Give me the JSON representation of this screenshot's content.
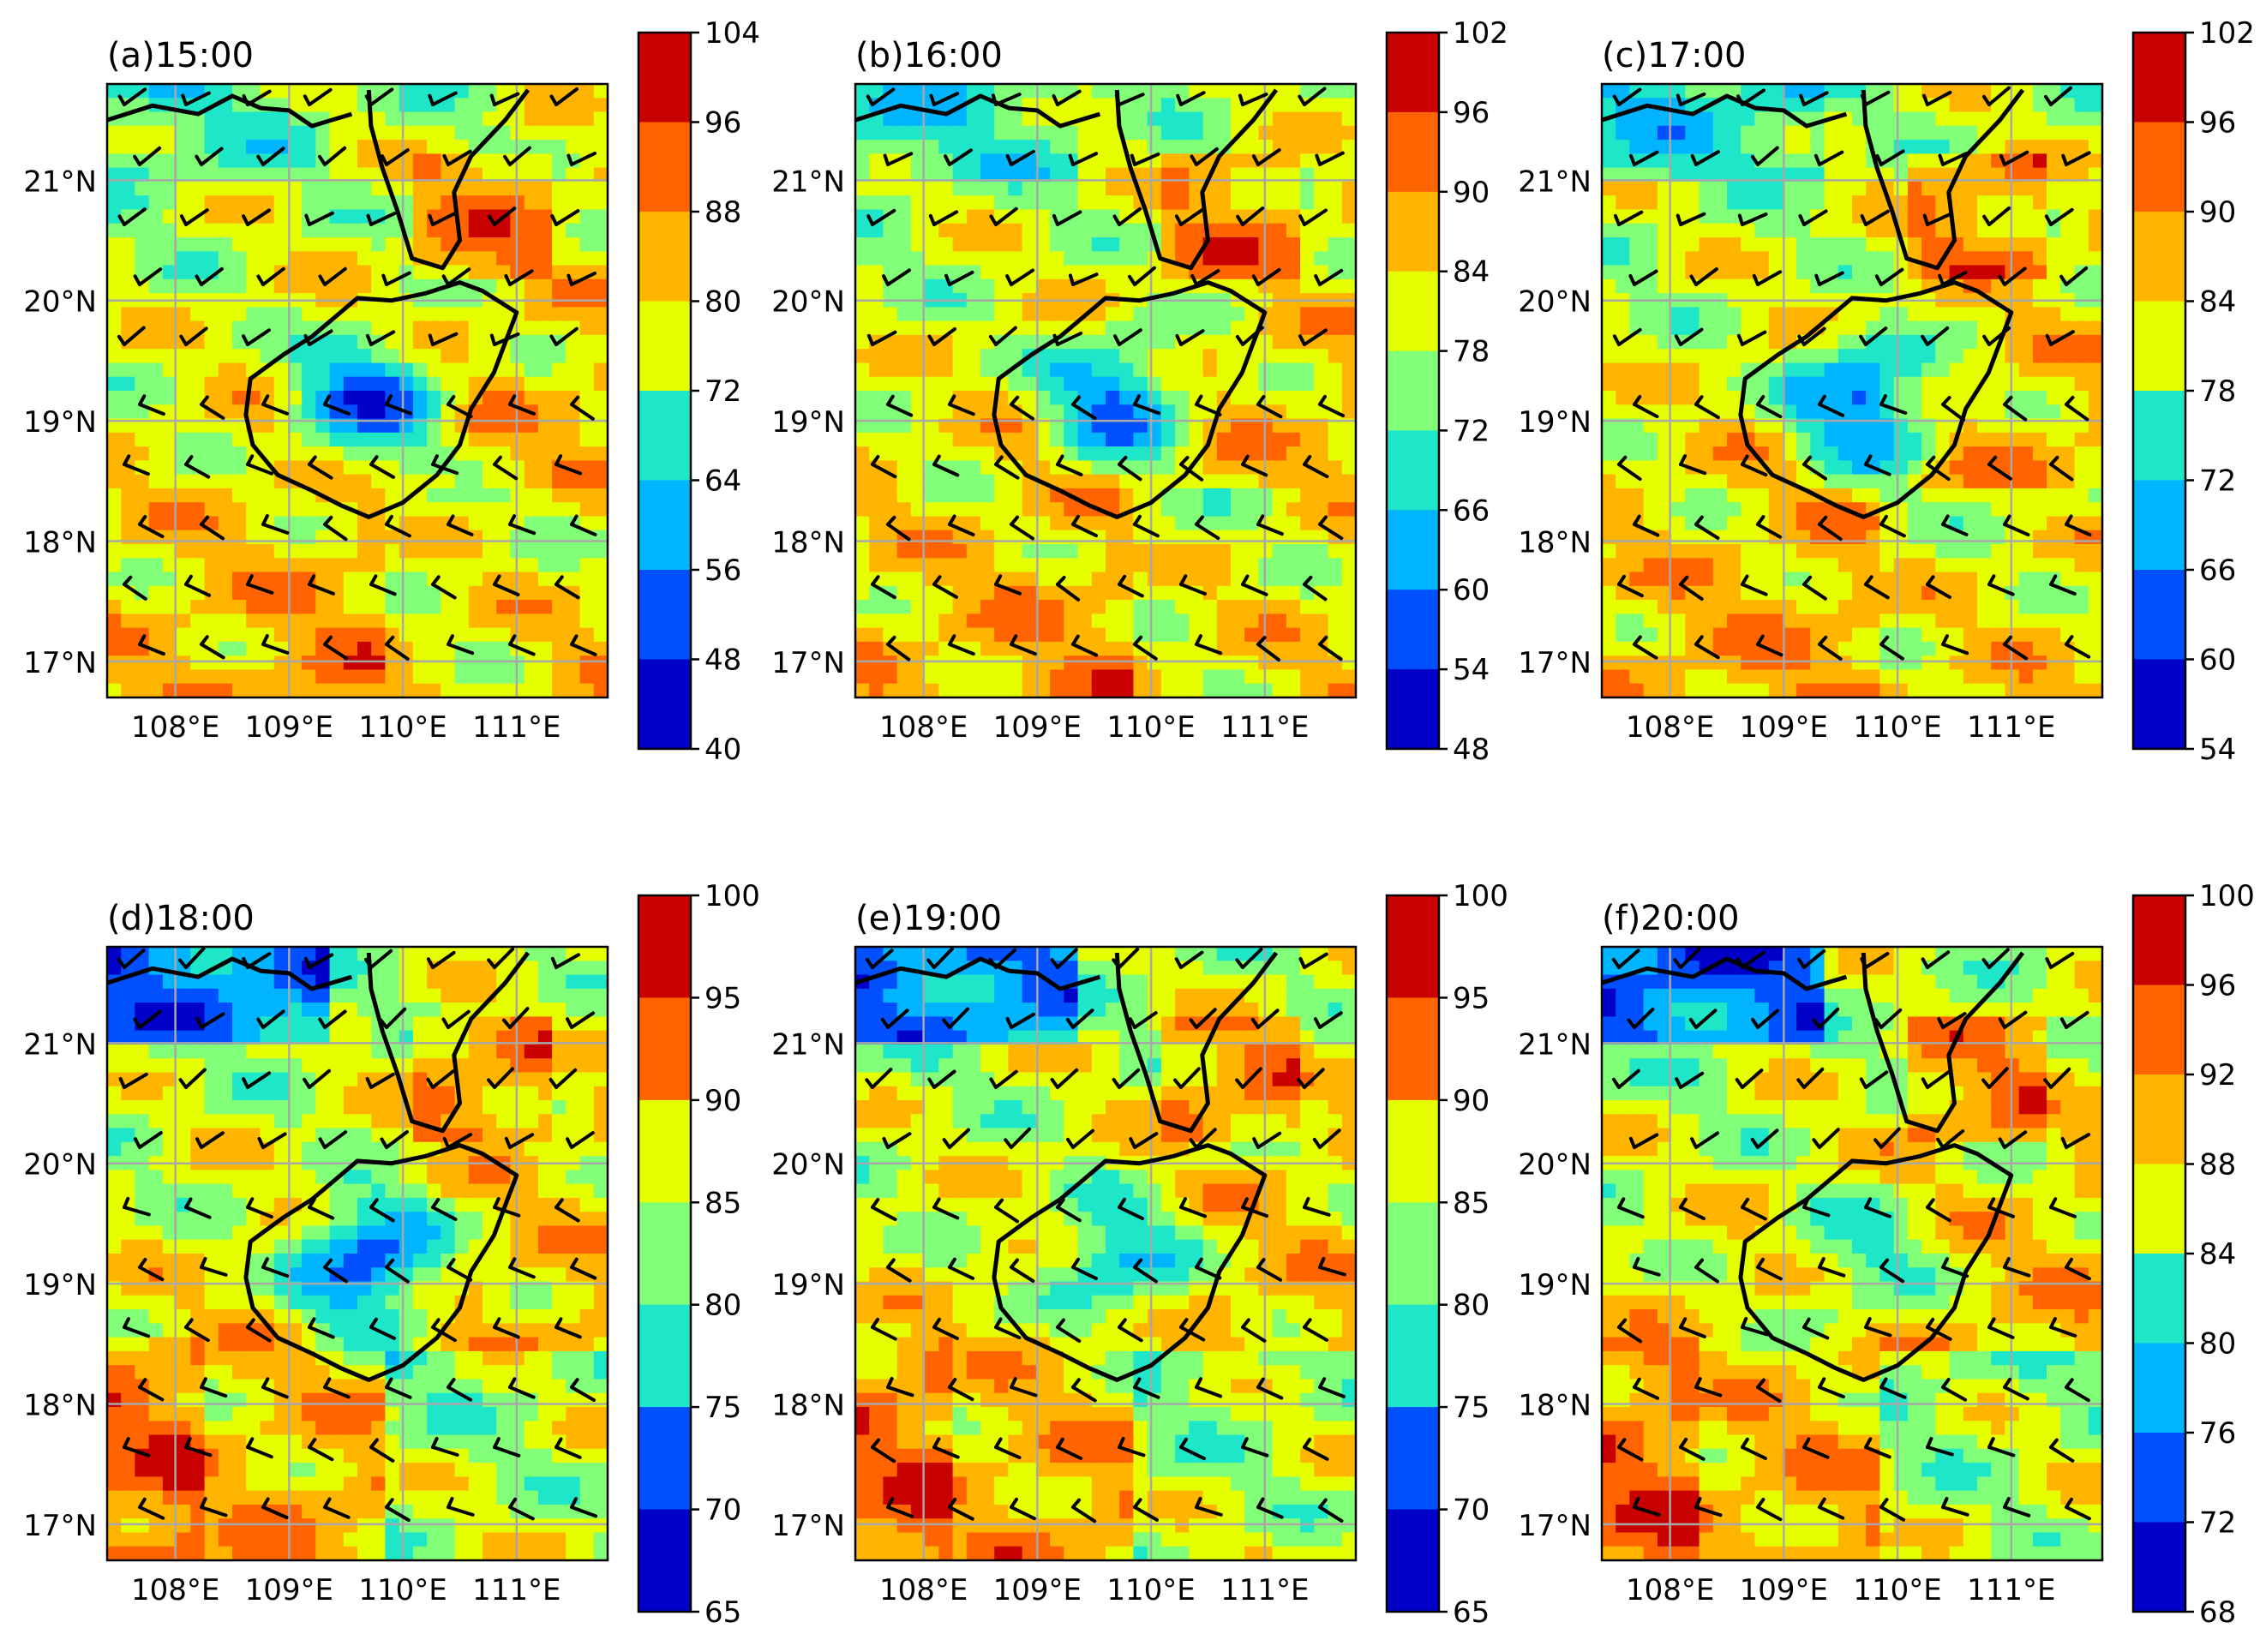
{
  "figure": {
    "background": "#ffffff"
  },
  "chart_data": {
    "type": "heatmap",
    "description_kind": "filled contour map with wind barbs",
    "xaxis_ticks": [
      "108°E",
      "109°E",
      "110°E",
      "111°E"
    ],
    "yaxis_ticks": [
      "17°N",
      "18°N",
      "19°N",
      "20°N",
      "21°N"
    ],
    "xlim": [
      107.4,
      111.8
    ],
    "ylim": [
      16.7,
      21.8
    ],
    "panels": [
      {
        "label": "(a)15:00",
        "colorbar_ticks": [
          "104",
          "96",
          "88",
          "80",
          "72",
          "64",
          "56",
          "48",
          "40"
        ]
      },
      {
        "label": "(b)16:00",
        "colorbar_ticks": [
          "102",
          "96",
          "90",
          "84",
          "78",
          "72",
          "66",
          "60",
          "54",
          "48"
        ]
      },
      {
        "label": "(c)17:00",
        "colorbar_ticks": [
          "102",
          "96",
          "90",
          "84",
          "78",
          "72",
          "66",
          "60",
          "54"
        ]
      },
      {
        "label": "(d)18:00",
        "colorbar_ticks": [
          "100",
          "95",
          "90",
          "85",
          "80",
          "75",
          "70",
          "65"
        ]
      },
      {
        "label": "(e)19:00",
        "colorbar_ticks": [
          "100",
          "95",
          "90",
          "85",
          "80",
          "75",
          "70",
          "65"
        ]
      },
      {
        "label": "(f)20:00",
        "colorbar_ticks": [
          "100",
          "96",
          "92",
          "88",
          "84",
          "80",
          "76",
          "72",
          "68"
        ]
      }
    ],
    "colormap_top_to_bottom": [
      "#c80000",
      "#ff6400",
      "#ffb400",
      "#e6ff00",
      "#82ff78",
      "#1ee6c8",
      "#00b4ff",
      "#0050ff",
      "#0000c8"
    ]
  }
}
